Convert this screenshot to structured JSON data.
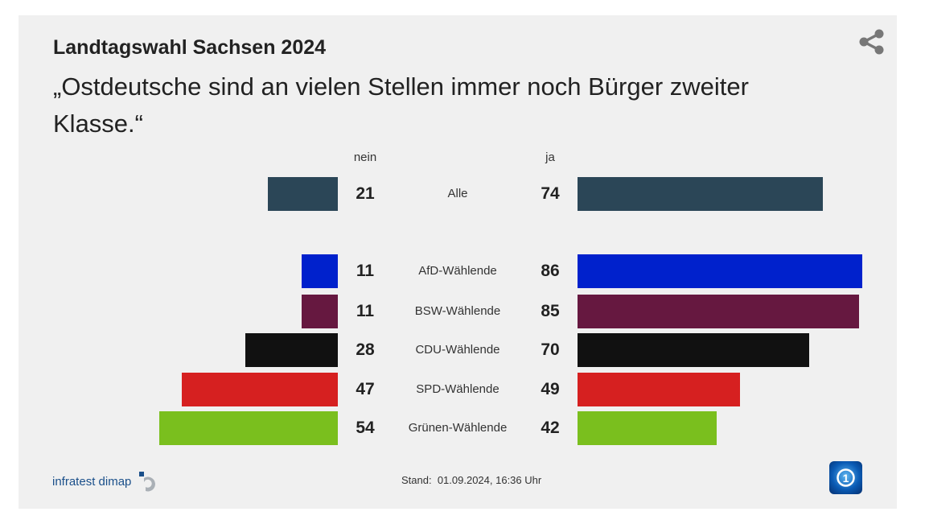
{
  "header": {
    "kicker": "Landtagswahl Sachsen 2024",
    "title": "„Ostdeutsche sind an vielen Stellen immer noch Bürger zweiter Klasse.“"
  },
  "footer": {
    "source": "infratest dimap",
    "stand_label": "Stand:",
    "stand_value": "01.09.2024, 16:36 Uhr",
    "logo": "tagesschau-logo"
  },
  "chart_data": {
    "type": "bar",
    "orientation": "diverging-horizontal",
    "column_headers": {
      "left": "nein",
      "right": "ja"
    },
    "categories": [
      "Alle",
      "AfD-Wählende",
      "BSW-Wählende",
      "CDU-Wählende",
      "SPD-Wählende",
      "Grünen-Wählende"
    ],
    "series": [
      {
        "name": "nein",
        "values": [
          21,
          11,
          11,
          28,
          47,
          54
        ]
      },
      {
        "name": "ja",
        "values": [
          74,
          86,
          85,
          70,
          49,
          42
        ]
      }
    ],
    "colors": [
      "#2b4657",
      "#0021cc",
      "#661840",
      "#111111",
      "#d62020",
      "#7abf1e"
    ]
  }
}
